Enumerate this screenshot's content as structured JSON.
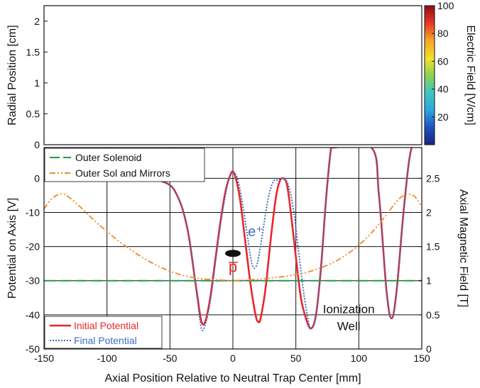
{
  "chart_data": [
    {
      "type": "heatmap",
      "panel": "top",
      "ylabel": "Radial Position [cm]",
      "ylim": [
        0,
        2.25
      ],
      "yticks": [
        "0",
        "0.5",
        "1",
        "1.5",
        "2"
      ],
      "colorbar": {
        "label": "Electric Field [V/cm]",
        "range": [
          0,
          100
        ],
        "ticks": [
          "20",
          "40",
          "60",
          "80",
          "100"
        ],
        "colormap": "jet"
      }
    },
    {
      "type": "line",
      "panel": "bottom",
      "xlabel": "Axial Position Relative to Neutral Trap Center [mm]",
      "ylabel": "Potential on Axis [V]",
      "y2label": "Axial Magnetic Field [T]",
      "xlim": [
        -150,
        150
      ],
      "ylim": [
        -50,
        9
      ],
      "y2lim": [
        0,
        2.95
      ],
      "xticks": [
        "-150",
        "-100",
        "-50",
        "0",
        "50",
        "100",
        "150"
      ],
      "yticks": [
        "-50",
        "-40",
        "-30",
        "-20",
        "-10",
        "0"
      ],
      "y2ticks": [
        "0",
        "0.5",
        "1",
        "1.5",
        "2",
        "2.5"
      ],
      "grid": true,
      "legends": {
        "top-left": [
          "Outer Solenoid",
          "Outer Sol and Mirrors"
        ],
        "bottom-left": [
          "Initial Potential",
          "Final Potential"
        ]
      },
      "series": [
        {
          "name": "Initial Potential",
          "axis": "left",
          "color": "#e8262c",
          "style": "solid",
          "x": [
            -150,
            -70,
            -60,
            -50,
            -45,
            -40,
            -35,
            -30,
            -28,
            -25,
            -22,
            -18,
            -14,
            -10,
            -6,
            -3,
            0,
            3,
            6,
            10,
            14,
            18,
            20,
            22,
            26,
            30,
            34,
            37,
            40,
            43,
            46,
            50,
            54,
            58,
            62,
            66,
            70,
            74,
            78,
            80,
            110,
            116,
            122,
            126,
            130,
            136,
            142,
            150
          ],
          "y": [
            0,
            0,
            -0.5,
            -2,
            -4.5,
            -9,
            -17,
            -30,
            -35,
            -42,
            -42,
            -35,
            -24,
            -13,
            -4,
            0,
            2,
            -1,
            -7,
            -19,
            -31,
            -40,
            -42,
            -41,
            -32,
            -18,
            -6,
            -1,
            0,
            -2,
            -10,
            -23,
            -35,
            -41,
            -44,
            -40,
            -26,
            -6,
            9,
            9,
            9,
            -5,
            -33,
            -41,
            -33,
            -8,
            9,
            9
          ]
        },
        {
          "name": "Final Potential",
          "axis": "left",
          "color": "#3d6fc2",
          "style": "dotted",
          "x": [
            -150,
            -70,
            -60,
            -50,
            -45,
            -40,
            -35,
            -30,
            -28,
            -25,
            -22,
            -18,
            -14,
            -10,
            -6,
            -3,
            0,
            3,
            6,
            10,
            14,
            16,
            18,
            20,
            24,
            28,
            32,
            36,
            40,
            44,
            48,
            52,
            56,
            60,
            62,
            66,
            70,
            74,
            78,
            80,
            110,
            116,
            122,
            126,
            130,
            136,
            142,
            150
          ],
          "y": [
            0,
            0,
            -0.5,
            -2,
            -4.5,
            -9,
            -17,
            -30,
            -36,
            -44,
            -43,
            -36,
            -25,
            -14,
            -5,
            0,
            1.5,
            0.5,
            -4,
            -13,
            -23,
            -26,
            -26,
            -24,
            -15,
            -6,
            -1,
            -0.5,
            0,
            -2,
            -9,
            -21,
            -33,
            -42,
            -44,
            -40,
            -26,
            -6,
            9,
            9,
            9,
            -5,
            -33,
            -41,
            -33,
            -8,
            9,
            9
          ]
        },
        {
          "name": "Outer Solenoid",
          "axis": "right",
          "color": "#1f9a4a",
          "style": "dashed",
          "x": [
            -150,
            150
          ],
          "y": [
            1.0,
            1.0
          ]
        },
        {
          "name": "Outer Sol and Mirrors",
          "axis": "right",
          "color": "#f08a24",
          "style": "dashdot",
          "x": [
            -150,
            -145,
            -140,
            -135,
            -130,
            -120,
            -110,
            -100,
            -90,
            -80,
            -70,
            -60,
            -50,
            -40,
            -30,
            -20,
            -10,
            0,
            10,
            20,
            30,
            40,
            50,
            60,
            70,
            80,
            90,
            100,
            110,
            120,
            130,
            135,
            140,
            145,
            150
          ],
          "y": [
            2.05,
            2.18,
            2.25,
            2.27,
            2.22,
            2.06,
            1.88,
            1.72,
            1.57,
            1.44,
            1.32,
            1.22,
            1.14,
            1.08,
            1.04,
            1.02,
            1.01,
            1.0,
            1.01,
            1.02,
            1.04,
            1.06,
            1.09,
            1.13,
            1.19,
            1.27,
            1.38,
            1.52,
            1.7,
            1.92,
            2.16,
            2.24,
            2.27,
            2.22,
            2.08
          ]
        }
      ],
      "markers": [
        {
          "name": "antiproton-cloud",
          "x": 0,
          "y": -22,
          "color": "#111111"
        }
      ],
      "annotations": [
        {
          "text": "e⁺",
          "x": 18,
          "y": -17,
          "color": "#3d6fc2"
        },
        {
          "text": "p̅",
          "x": 0,
          "y": -27.5,
          "color": "#e8262c"
        },
        {
          "text": "Ionization",
          "x": 92,
          "y": -39.5,
          "color": "#111111"
        },
        {
          "text": "Well",
          "x": 92,
          "y": -44.5,
          "color": "#111111"
        }
      ]
    }
  ]
}
